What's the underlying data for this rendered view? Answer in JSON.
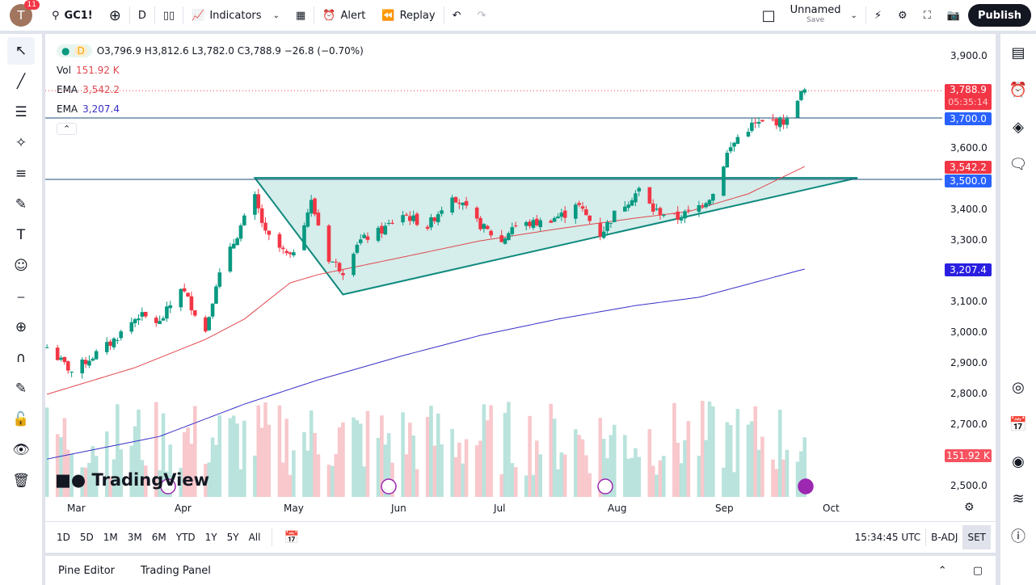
{
  "topbar": {
    "notifications": "11",
    "avatar_letter": "T",
    "symbol": "GC1!",
    "interval": "D",
    "indicators": "Indicators",
    "alert": "Alert",
    "replay": "Replay",
    "layout_name": "Unnamed",
    "save": "Save",
    "publish": "Publish"
  },
  "legend": {
    "interval": "D",
    "ohlc": "O3,796.9 H3,812.6 L3,782.0 C3,788.9 −26.8 (−0.70%)",
    "vol_label": "Vol",
    "vol_value": "151.92 K",
    "ema1_label": "EMA",
    "ema1_value": "3,542.2",
    "ema2_label": "EMA",
    "ema2_value": "3,207.4"
  },
  "price_axis": {
    "ticks": [
      "3,900.0",
      "3,600.0",
      "3,400.0",
      "3,300.0",
      "3,100.0",
      "3,000.0",
      "2,900.0",
      "2,800.0",
      "2,700.0",
      "2,500.0"
    ],
    "last_price": "3,788.9",
    "countdown": "05:35:14",
    "line_3700": "3,700.0",
    "line_3500": "3,500.0",
    "ema1": "3,542.2",
    "ema2": "3,207.4",
    "volume": "151.92 K"
  },
  "time_axis": [
    "Mar",
    "Apr",
    "May",
    "Jun",
    "Jul",
    "Aug",
    "Sep",
    "Oct"
  ],
  "bottombar": {
    "ranges": [
      "1D",
      "5D",
      "1M",
      "3M",
      "6M",
      "YTD",
      "1Y",
      "5Y",
      "All"
    ],
    "clock": "15:34:45 UTC",
    "adj": "B-ADJ",
    "session": "SET"
  },
  "panel": {
    "pine": "Pine Editor",
    "trading": "Trading Panel"
  },
  "watermark": "TradingView",
  "colors": {
    "up": "#089981",
    "down": "#f23645",
    "ema1": "#e0484f",
    "ema2": "#3a2fc7",
    "hline": "#2962ff",
    "triangle": "#b2dfdb"
  },
  "chart_data": {
    "type": "candlestick",
    "symbol": "GC1!",
    "close_keypoints": [
      [
        "2025-02-21",
        2953
      ],
      [
        "2025-02-28",
        2874
      ],
      [
        "2025-03-11",
        2966
      ],
      [
        "2025-03-19",
        3058
      ],
      [
        "2025-03-25",
        3032
      ],
      [
        "2025-03-31",
        3150
      ],
      [
        "2025-04-07",
        3005
      ],
      [
        "2025-04-10",
        3163
      ],
      [
        "2025-04-17",
        3347
      ],
      [
        "2025-04-21",
        3440
      ],
      [
        "2025-04-24",
        3321
      ],
      [
        "2025-05-01",
        3242
      ],
      [
        "2025-05-07",
        3426
      ],
      [
        "2025-05-12",
        3242
      ],
      [
        "2025-05-16",
        3202
      ],
      [
        "2025-05-20",
        3295
      ],
      [
        "2025-05-27",
        3334
      ],
      [
        "2025-06-02",
        3387
      ],
      [
        "2025-06-09",
        3347
      ],
      [
        "2025-06-16",
        3453
      ],
      [
        "2025-06-23",
        3360
      ],
      [
        "2025-06-30",
        3295
      ],
      [
        "2025-07-03",
        3347
      ],
      [
        "2025-07-11",
        3360
      ],
      [
        "2025-07-18",
        3387
      ],
      [
        "2025-07-21",
        3426
      ],
      [
        "2025-07-28",
        3321
      ],
      [
        "2025-08-01",
        3387
      ],
      [
        "2025-08-08",
        3466
      ],
      [
        "2025-08-12",
        3400
      ],
      [
        "2025-08-19",
        3374
      ],
      [
        "2025-08-25",
        3413
      ],
      [
        "2025-08-29",
        3453
      ],
      [
        "2025-09-02",
        3584
      ],
      [
        "2025-09-05",
        3637
      ],
      [
        "2025-09-09",
        3676
      ],
      [
        "2025-09-15",
        3689
      ],
      [
        "2025-09-19",
        3689
      ],
      [
        "2025-09-22",
        3768
      ],
      [
        "2025-09-24",
        3789
      ]
    ],
    "ema_fast": [
      [
        "2025-02-21",
        2800
      ],
      [
        "2025-03-18",
        2887
      ],
      [
        "2025-04-07",
        2979
      ],
      [
        "2025-04-18",
        3045
      ],
      [
        "2025-05-01",
        3163
      ],
      [
        "2025-05-09",
        3190
      ],
      [
        "2025-06-02",
        3247
      ],
      [
        "2025-06-24",
        3300
      ],
      [
        "2025-07-16",
        3339
      ],
      [
        "2025-08-07",
        3374
      ],
      [
        "2025-08-22",
        3395
      ],
      [
        "2025-09-08",
        3453
      ],
      [
        "2025-09-24",
        3542
      ]
    ],
    "ema_slow": [
      [
        "2025-02-21",
        2589
      ],
      [
        "2025-03-25",
        2663
      ],
      [
        "2025-04-18",
        2768
      ],
      [
        "2025-05-09",
        2847
      ],
      [
        "2025-06-02",
        2926
      ],
      [
        "2025-06-24",
        2992
      ],
      [
        "2025-07-16",
        3045
      ],
      [
        "2025-08-07",
        3089
      ],
      [
        "2025-08-25",
        3116
      ],
      [
        "2025-09-24",
        3208
      ]
    ],
    "hlines": [
      3700,
      3500
    ],
    "triangle": [
      [
        "2025-04-21",
        3505
      ],
      [
        "2025-05-16",
        3125
      ],
      [
        "2025-10-09",
        3505
      ]
    ],
    "ylim": [
      2450,
      3950
    ]
  }
}
